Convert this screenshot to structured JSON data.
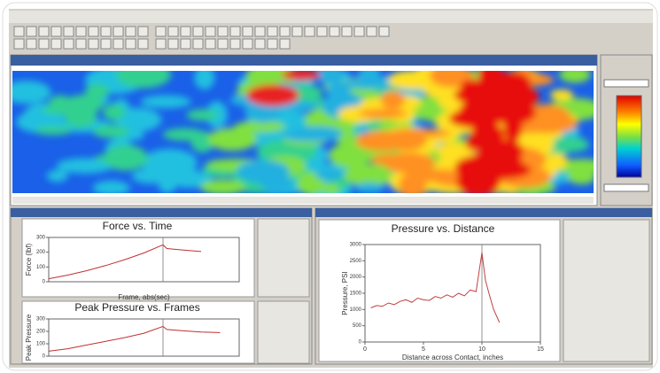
{
  "chart_data": [
    {
      "type": "line",
      "title": "Force vs. Time",
      "y_label": "Force (lbf)",
      "x_label": "Frame, abs(sec)",
      "x": [
        0,
        10,
        20,
        30,
        40,
        50,
        60,
        62,
        70,
        80
      ],
      "values": [
        20,
        45,
        75,
        110,
        150,
        195,
        250,
        225,
        215,
        205
      ],
      "xlim": [
        0,
        100
      ],
      "ylim": [
        0,
        300
      ],
      "yticks": [
        0,
        100,
        200,
        300
      ],
      "color": "#c03030"
    },
    {
      "type": "line",
      "title": "Peak Pressure vs. Frames",
      "y_label": "Peak Pressure",
      "x": [
        0,
        10,
        20,
        30,
        40,
        50,
        60,
        62,
        70,
        80,
        90
      ],
      "values": [
        40,
        60,
        90,
        120,
        150,
        185,
        240,
        215,
        205,
        195,
        190
      ],
      "xlim": [
        0,
        100
      ],
      "ylim": [
        0,
        300
      ],
      "yticks": [
        0,
        100,
        200,
        300
      ],
      "color": "#c03030"
    },
    {
      "type": "line",
      "title": "Pressure vs. Distance",
      "y_label": "Pressure, PSI",
      "x_label": "Distance across Contact, inches",
      "x": [
        0.5,
        1,
        1.5,
        2,
        2.5,
        3,
        3.5,
        4,
        4.5,
        5,
        5.5,
        6,
        6.5,
        7,
        7.5,
        8,
        8.5,
        9,
        9.5,
        10,
        10.3,
        10.6,
        11,
        11.5
      ],
      "values": [
        1050,
        1120,
        1100,
        1200,
        1150,
        1250,
        1300,
        1220,
        1350,
        1300,
        1280,
        1400,
        1350,
        1450,
        1380,
        1500,
        1420,
        1600,
        1550,
        2750,
        1900,
        1500,
        1000,
        600
      ],
      "xlim": [
        0,
        15
      ],
      "ylim": [
        0,
        3000
      ],
      "xticks": [
        0,
        5,
        10,
        15
      ],
      "yticks": [
        0,
        500,
        1000,
        1500,
        2000,
        2500,
        3000
      ],
      "color": "#c04040"
    }
  ]
}
